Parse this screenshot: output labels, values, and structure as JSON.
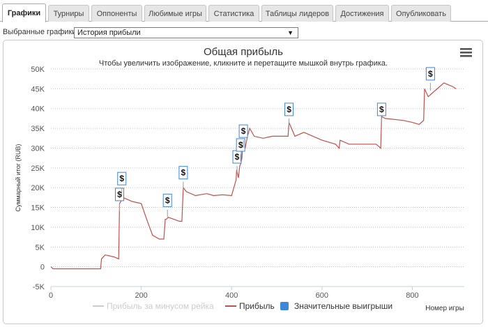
{
  "tabs": [
    {
      "label": "Графики",
      "active": true
    },
    {
      "label": "Турниры",
      "active": false
    },
    {
      "label": "Оппоненты",
      "active": false
    },
    {
      "label": "Любимые игры",
      "active": false
    },
    {
      "label": "Статистика",
      "active": false
    },
    {
      "label": "Таблицы лидеров",
      "active": false
    },
    {
      "label": "Достижения",
      "active": false
    },
    {
      "label": "Опубликовать",
      "active": false
    }
  ],
  "selector": {
    "label": "Выбранные графики:",
    "value": "История прибыли"
  },
  "chart_data": {
    "type": "line",
    "title": "Общая прибыль",
    "subtitle": "Чтобы увеличить изображение, кликните и перетащите мышкой внутрь графика.",
    "xlabel": "Номер игры",
    "ylabel": "Суммарный итог (RUB)",
    "xlim": [
      0,
      915
    ],
    "ylim": [
      -5000,
      50000
    ],
    "x_ticks": [
      0,
      200,
      400,
      600,
      800
    ],
    "y_ticks": [
      -5000,
      0,
      5000,
      10000,
      15000,
      20000,
      25000,
      30000,
      35000,
      40000,
      45000,
      50000
    ],
    "y_tick_labels": [
      "-5K",
      "0",
      "5K",
      "10K",
      "15K",
      "20K",
      "25K",
      "30K",
      "35K",
      "40K",
      "45K",
      "50K"
    ],
    "grid": true,
    "legend_position": "bottom",
    "series": [
      {
        "name": "Прибыль за минусом рейка",
        "color": "#cccccc",
        "visible": false,
        "x": [],
        "y": []
      },
      {
        "name": "Прибыль",
        "color": "#c0504d",
        "visible": true,
        "x": [
          0,
          5,
          10,
          40,
          80,
          110,
          112,
          120,
          140,
          150,
          152,
          160,
          170,
          180,
          200,
          212,
          225,
          240,
          250,
          253,
          255,
          260,
          285,
          290,
          293,
          300,
          320,
          345,
          360,
          380,
          400,
          410,
          411,
          415,
          418,
          420,
          423,
          425,
          430,
          435,
          440,
          450,
          470,
          490,
          510,
          525,
          527,
          540,
          560,
          580,
          600,
          630,
          638,
          640,
          660,
          700,
          720,
          730,
          732,
          740,
          780,
          800,
          815,
          825,
          827,
          835,
          845,
          860,
          870,
          880,
          890,
          897
        ],
        "y": [
          0,
          -500,
          -500,
          -500,
          -500,
          -500,
          2000,
          3000,
          2500,
          2000,
          16000,
          17500,
          17000,
          16500,
          16000,
          12000,
          8000,
          7000,
          7000,
          12000,
          12000,
          12500,
          11500,
          11500,
          20000,
          19000,
          18000,
          18500,
          18000,
          18200,
          18000,
          22000,
          24500,
          22500,
          25500,
          26000,
          27500,
          32000,
          30000,
          33000,
          35000,
          33000,
          32500,
          33000,
          33000,
          33000,
          36500,
          33000,
          34000,
          33000,
          32000,
          31000,
          30000,
          32000,
          31000,
          31000,
          31000,
          30000,
          38000,
          37500,
          37000,
          36500,
          36000,
          37000,
          45000,
          43000,
          44000,
          45500,
          46500,
          46000,
          45500,
          45000
        ]
      },
      {
        "name": "Значительные выигрыши",
        "color": "#3d86d8",
        "visible": true,
        "type": "markers",
        "symbol": "$",
        "x": [
          152,
          157,
          258,
          293,
          412,
          420,
          426,
          527,
          732,
          840
        ],
        "y": [
          16000,
          20000,
          14500,
          21500,
          25500,
          28500,
          32000,
          37500,
          37500,
          46500
        ]
      }
    ]
  }
}
